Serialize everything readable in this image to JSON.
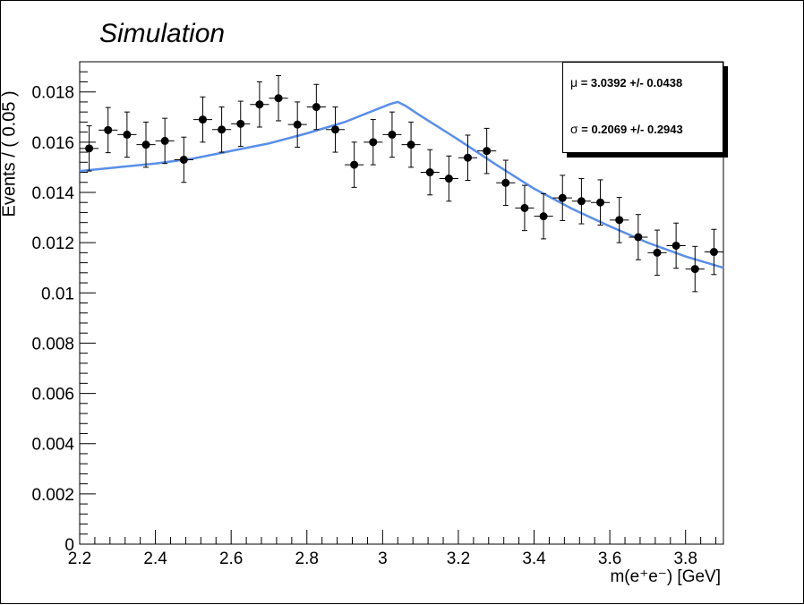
{
  "chart_data": {
    "type": "scatter",
    "title": "Simulation",
    "xlabel": "m(e⁺e⁻) [GeV]",
    "ylabel": "Events / ( 0.05 )",
    "xlim": [
      2.2,
      3.9
    ],
    "ylim": [
      0,
      0.0192
    ],
    "x_ticks": [
      "2.2",
      "2.4",
      "2.6",
      "2.8",
      "3",
      "3.2",
      "3.4",
      "3.6",
      "3.8"
    ],
    "y_ticks": [
      "0",
      "0.002",
      "0.004",
      "0.006",
      "0.008",
      "0.01",
      "0.012",
      "0.014",
      "0.016",
      "0.018"
    ],
    "grid": false,
    "series": [
      {
        "kind": "data",
        "marker": "filled-circle",
        "color": "#000000",
        "x_error": 0.025,
        "points": [
          {
            "x": 2.225,
            "y": 0.01575,
            "err": 0.0009
          },
          {
            "x": 2.275,
            "y": 0.01648,
            "err": 0.0009
          },
          {
            "x": 2.325,
            "y": 0.0163,
            "err": 0.0009
          },
          {
            "x": 2.375,
            "y": 0.0159,
            "err": 0.0009
          },
          {
            "x": 2.425,
            "y": 0.01605,
            "err": 0.0009
          },
          {
            "x": 2.475,
            "y": 0.0153,
            "err": 0.0009
          },
          {
            "x": 2.525,
            "y": 0.0169,
            "err": 0.0009
          },
          {
            "x": 2.575,
            "y": 0.0165,
            "err": 0.0009
          },
          {
            "x": 2.625,
            "y": 0.01673,
            "err": 0.0009
          },
          {
            "x": 2.675,
            "y": 0.0175,
            "err": 0.0009
          },
          {
            "x": 2.725,
            "y": 0.01775,
            "err": 0.0009
          },
          {
            "x": 2.775,
            "y": 0.0167,
            "err": 0.0009
          },
          {
            "x": 2.825,
            "y": 0.0174,
            "err": 0.0009
          },
          {
            "x": 2.875,
            "y": 0.0165,
            "err": 0.0009
          },
          {
            "x": 2.925,
            "y": 0.0151,
            "err": 0.0009
          },
          {
            "x": 2.975,
            "y": 0.016,
            "err": 0.0009
          },
          {
            "x": 3.025,
            "y": 0.0163,
            "err": 0.0009
          },
          {
            "x": 3.075,
            "y": 0.0159,
            "err": 0.0009
          },
          {
            "x": 3.125,
            "y": 0.0148,
            "err": 0.0009
          },
          {
            "x": 3.175,
            "y": 0.01455,
            "err": 0.0009
          },
          {
            "x": 3.225,
            "y": 0.01538,
            "err": 0.0009
          },
          {
            "x": 3.275,
            "y": 0.01565,
            "err": 0.0009
          },
          {
            "x": 3.325,
            "y": 0.01438,
            "err": 0.0009
          },
          {
            "x": 3.375,
            "y": 0.01338,
            "err": 0.0009
          },
          {
            "x": 3.425,
            "y": 0.01305,
            "err": 0.0009
          },
          {
            "x": 3.475,
            "y": 0.01378,
            "err": 0.0009
          },
          {
            "x": 3.525,
            "y": 0.01365,
            "err": 0.0009
          },
          {
            "x": 3.575,
            "y": 0.0136,
            "err": 0.0009
          },
          {
            "x": 3.625,
            "y": 0.0129,
            "err": 0.0009
          },
          {
            "x": 3.675,
            "y": 0.01222,
            "err": 0.0009
          },
          {
            "x": 3.725,
            "y": 0.0116,
            "err": 0.0009
          },
          {
            "x": 3.775,
            "y": 0.01188,
            "err": 0.0009
          },
          {
            "x": 3.825,
            "y": 0.01095,
            "err": 0.0009
          },
          {
            "x": 3.875,
            "y": 0.01163,
            "err": 0.0009
          }
        ]
      },
      {
        "kind": "fit",
        "line": true,
        "color": "#5a8fe8",
        "x": [
          2.2,
          2.3,
          2.4,
          2.5,
          2.6,
          2.7,
          2.8,
          2.9,
          2.95,
          3.0,
          3.02,
          3.04,
          3.06,
          3.1,
          3.2,
          3.3,
          3.4,
          3.5,
          3.6,
          3.7,
          3.8,
          3.9
        ],
        "y": [
          0.01485,
          0.015,
          0.01515,
          0.01535,
          0.01565,
          0.01595,
          0.01635,
          0.0168,
          0.0171,
          0.0174,
          0.01752,
          0.0176,
          0.01745,
          0.01705,
          0.0161,
          0.0151,
          0.01415,
          0.01335,
          0.01265,
          0.012,
          0.01145,
          0.011
        ]
      }
    ],
    "stats_box": {
      "placement": "top-right",
      "lines": [
        {
          "symbol": "μ",
          "text": " = 3.0392 +/- 0.0438"
        },
        {
          "symbol": "σ",
          "text": " = 0.2069 +/- 0.2943"
        }
      ]
    }
  }
}
